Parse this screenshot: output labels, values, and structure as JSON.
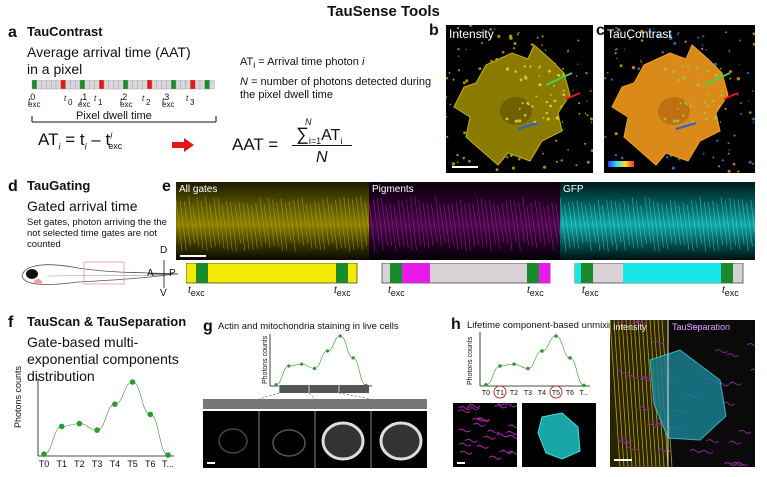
{
  "title": "TauSense Tools",
  "a": {
    "label": "a",
    "heading": "TauContrast",
    "desc1": "Average arrival time  (AAT)",
    "desc2": "in a pixel",
    "t_exc": "exc",
    "t_labels": [
      "0",
      "1",
      "2",
      "3"
    ],
    "dwell": "Pixel dwell time",
    "formula_at": "AT",
    "formula_i": "i",
    "formula_eq": " = t",
    "formula_minus": " – t",
    "formula_sup": "i",
    "def1": "AT",
    "def1_sub": "i",
    "def1_rest": " = Arrival time photon ",
    "def1_i": "i",
    "def2_n": "N",
    "def2_rest": " = number of photons detected during",
    "def3": "the pixel dwell time",
    "aat": "AAT = ",
    "sum_n": "N",
    "sum_i": "i=1",
    "sum_at": "AT",
    "sum_sub": "i",
    "denom": "N"
  },
  "b": {
    "label": "b",
    "caption": "Intensity"
  },
  "c": {
    "label": "c",
    "caption": "TauContrast"
  },
  "d": {
    "label": "d",
    "heading": "TauGating",
    "desc": "Gated arrival time",
    "small1": "Set gates, photon arriving the the",
    "small2": "not selected time gates are not",
    "small3": "counted",
    "dir_d": "D",
    "dir_a": "A",
    "dir_p": "P",
    "dir_v": "V"
  },
  "e": {
    "label": "e",
    "captions": [
      "All gates",
      "Pigments",
      "GFP"
    ],
    "t": "t",
    "exc": "exc"
  },
  "f": {
    "label": "f",
    "heading": "TauScan & TauSeparation",
    "desc1": "Gate-based multi-",
    "desc2": "exponential components",
    "desc3": "distribution",
    "ylabel": "Photons counts",
    "ticks": [
      "T0",
      "T1",
      "T2",
      "T3",
      "T4",
      "T5",
      "T6",
      "T..."
    ]
  },
  "g": {
    "label": "g",
    "caption": "Actin and mitochondria staining in live cells",
    "ylabel": "Photons counts"
  },
  "h": {
    "label": "h",
    "caption": "Lifetime component-based unmixing",
    "ylabel": "Photons counts",
    "ticks": [
      "T0",
      "T1",
      "T2",
      "T3",
      "T4",
      "T5",
      "T6",
      "T..."
    ],
    "img_intensity": "Intensity",
    "img_sep": "TauSeparation"
  },
  "colors": {
    "yellow": "#f2ea00",
    "magenta": "#e81ae8",
    "cyan": "#16e6e6",
    "gate_green": "#1b8a2a",
    "gate_gray": "#d8d2d6",
    "plot_green": "#2e9a2e",
    "arrow_red": "#e51616"
  },
  "chart_data": [
    {
      "type": "line",
      "categories": [
        "T0",
        "T1",
        "T2",
        "T3",
        "T4",
        "T5",
        "T6",
        "T..."
      ],
      "values": [
        2,
        32,
        35,
        28,
        56,
        80,
        45,
        1
      ],
      "xlabel": "",
      "ylabel": "Photons counts",
      "grid": false
    }
  ]
}
